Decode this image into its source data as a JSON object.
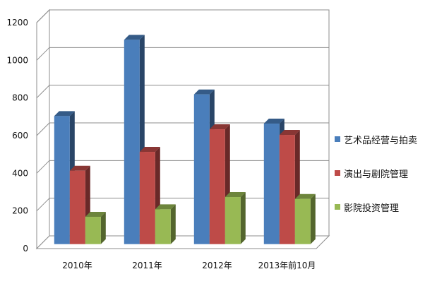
{
  "chart_data": {
    "type": "bar",
    "categories": [
      "2010年",
      "2011年",
      "2012年",
      "2013年前10月"
    ],
    "series": [
      {
        "name": "艺术品经营与拍卖",
        "values": [
          680,
          1085,
          795,
          640
        ],
        "color": "#4a7ebb"
      },
      {
        "name": "演出与剧院管理",
        "values": [
          390,
          490,
          610,
          580
        ],
        "color": "#be4b48"
      },
      {
        "name": "影院投资管理",
        "values": [
          145,
          185,
          250,
          240
        ],
        "color": "#98b954"
      }
    ],
    "yticks": [
      0,
      200,
      400,
      600,
      800,
      1000,
      1200
    ],
    "ylim": [
      0,
      1200
    ],
    "grid": true,
    "legend_position": "right",
    "style": "3d-clustered-column"
  }
}
